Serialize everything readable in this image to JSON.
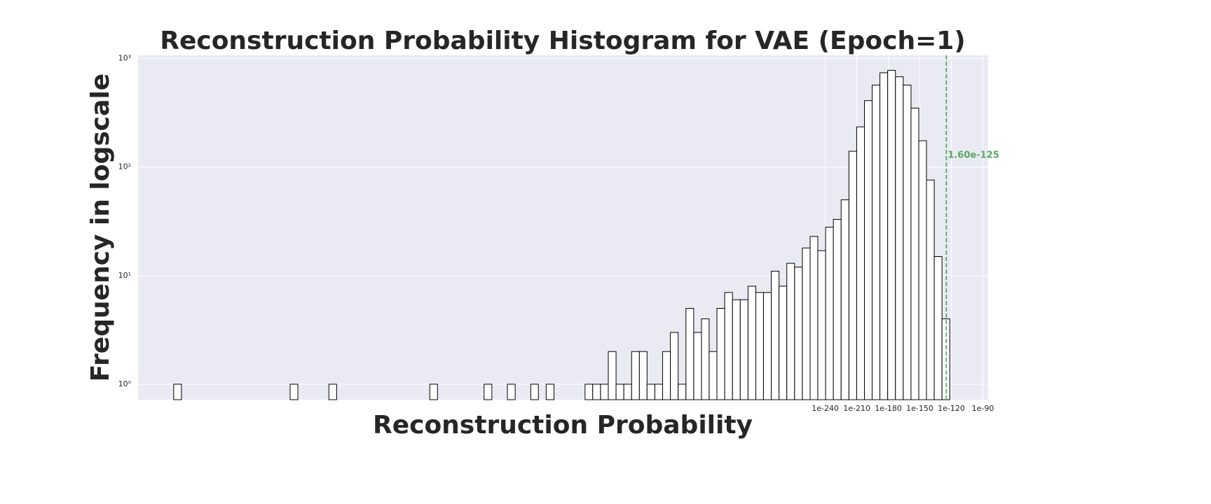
{
  "chart_data": {
    "type": "histogram",
    "title": "Reconstruction Probability Histogram for VAE (Epoch=1)",
    "x_label": "Reconstruction Probability",
    "y_label": "Frequency in logscale",
    "bins": [
      -860.1,
      -852.7,
      -845.3,
      -837.9,
      -830.6,
      -823.2,
      -815.8,
      -808.4,
      -801.0,
      -793.6,
      -786.2,
      -778.9,
      -771.5,
      -764.1,
      -756.7,
      -749.3,
      -741.9,
      -734.5,
      -727.2,
      -719.8,
      -712.4,
      -705.0,
      -697.6,
      -690.2,
      -682.8,
      -675.5,
      -668.1,
      -660.7,
      -653.3,
      -645.9,
      -638.5,
      -631.1,
      -623.7,
      -616.4,
      -609.0,
      -601.6,
      -594.2,
      -586.8,
      -579.4,
      -572.0,
      -564.7,
      -557.3,
      -549.9,
      -542.5,
      -535.1,
      -527.7,
      -520.3,
      -513.0,
      -505.6,
      -498.2,
      -490.8,
      -483.4,
      -476.0,
      -468.6,
      -461.3,
      -453.9,
      -446.5,
      -439.1,
      -431.7,
      -424.3,
      -416.9,
      -409.6,
      -402.2,
      -394.8,
      -387.4,
      -380.0,
      -372.6,
      -365.2,
      -357.8,
      -350.5,
      -343.1,
      -335.7,
      -328.3,
      -320.9,
      -313.5,
      -306.1,
      -298.8,
      -291.4,
      -284.0,
      -276.6,
      -269.2,
      -261.8,
      -254.4,
      -247.1,
      -239.7,
      -232.3,
      -224.9,
      -217.5,
      -210.1,
      -202.7,
      -195.4,
      -188.0,
      -180.6,
      -173.2,
      -165.8,
      -158.4,
      -151.0,
      -143.7,
      -136.3,
      -128.9,
      -121.5
    ],
    "values": [
      1,
      0,
      0,
      0,
      0,
      0,
      0,
      0,
      0,
      0,
      0,
      0,
      0,
      0,
      0,
      1,
      0,
      0,
      0,
      0,
      1,
      0,
      0,
      0,
      0,
      0,
      0,
      0,
      0,
      0,
      0,
      0,
      0,
      1,
      0,
      0,
      0,
      0,
      0,
      0,
      1,
      0,
      0,
      1,
      0,
      0,
      1,
      0,
      1,
      0,
      0,
      0,
      0,
      1,
      1,
      1,
      2,
      1,
      1,
      2,
      2,
      1,
      1,
      2,
      3,
      1,
      5,
      3,
      4,
      2,
      5,
      7,
      6,
      6,
      8,
      7,
      7,
      11,
      8,
      13,
      12,
      18,
      23,
      17,
      28,
      33,
      50,
      140,
      235,
      410,
      570,
      740,
      780,
      680,
      570,
      350,
      175,
      76,
      15,
      4
    ],
    "color": "#ffffff",
    "edge_color": "#000000",
    "xlim": [
      -894,
      -85
    ],
    "xticks": [
      {
        "value": -240,
        "label": "1e-240"
      },
      {
        "value": -210,
        "label": "1e-210"
      },
      {
        "value": -180,
        "label": "1e-180"
      },
      {
        "value": -150,
        "label": "1e-150"
      },
      {
        "value": -120,
        "label": "1e-120"
      },
      {
        "value": -90,
        "label": "1e-90"
      }
    ],
    "ylim": [
      0.72,
      1072
    ],
    "yticks": [
      {
        "value": 1,
        "label": "10⁰"
      },
      {
        "value": 10,
        "label": "10¹"
      },
      {
        "value": 100,
        "label": "10²"
      },
      {
        "value": 1000,
        "label": "10³"
      }
    ],
    "y_scale": "log",
    "grid": true,
    "threshold": {
      "value": -124.8,
      "label": "1.60e-125",
      "color": "#55a868"
    }
  }
}
